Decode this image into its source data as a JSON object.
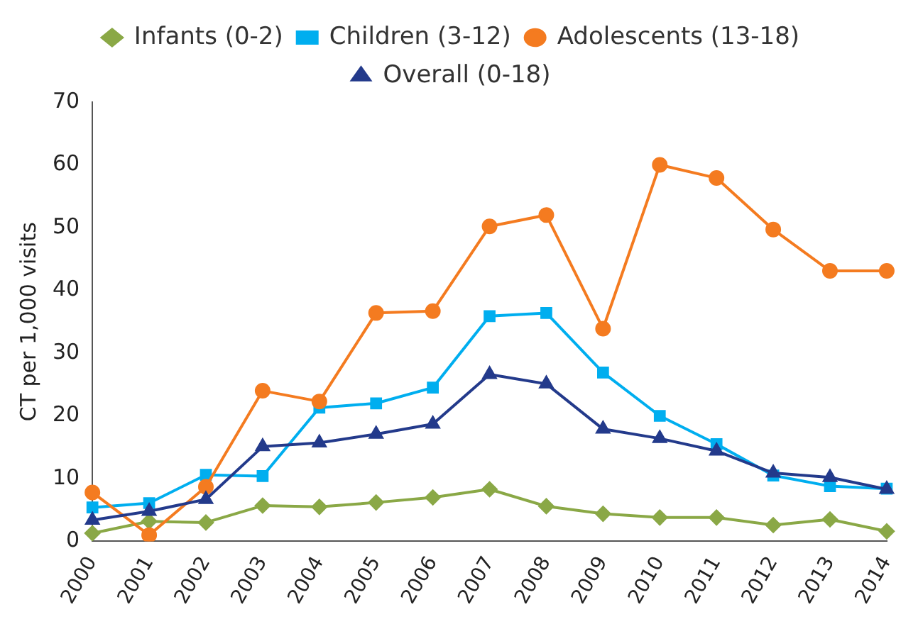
{
  "chart_data": {
    "type": "line",
    "ylabel": "CT per 1,000 visits",
    "categories": [
      "2000",
      "2001",
      "2002",
      "2003",
      "2004",
      "2005",
      "2006",
      "2007",
      "2008",
      "2009",
      "2010",
      "2011",
      "2012",
      "2013",
      "2014"
    ],
    "series": [
      {
        "name": "Infants (0-2)",
        "color": "#8aa846",
        "marker": "diamond",
        "values": [
          1.3,
          3.2,
          3.0,
          5.7,
          5.5,
          6.2,
          7.0,
          8.3,
          5.6,
          4.4,
          3.8,
          3.8,
          2.6,
          3.5,
          1.6
        ]
      },
      {
        "name": "Children (3-12)",
        "color": "#00aeef",
        "marker": "square",
        "values": [
          5.4,
          6.1,
          10.6,
          10.4,
          21.3,
          22.0,
          24.5,
          35.9,
          36.4,
          26.9,
          20.0,
          15.5,
          10.5,
          8.8,
          8.4
        ]
      },
      {
        "name": "Adolescents (13-18)",
        "color": "#f47b20",
        "marker": "circle",
        "values": [
          7.8,
          1.0,
          8.7,
          24.0,
          22.3,
          36.4,
          36.7,
          50.2,
          52.0,
          33.9,
          60.0,
          57.9,
          49.7,
          43.1,
          43.1
        ]
      },
      {
        "name": "Overall (0-18)",
        "color": "#233a8b",
        "marker": "triangle",
        "values": [
          3.4,
          4.8,
          6.7,
          15.1,
          15.7,
          17.1,
          18.7,
          26.6,
          25.1,
          17.9,
          16.4,
          14.4,
          10.9,
          10.2,
          8.3
        ]
      }
    ],
    "ylim": [
      0,
      70
    ],
    "yticks": [
      0,
      10,
      20,
      30,
      40,
      50,
      60,
      70
    ],
    "grid": false,
    "legend": "top",
    "line_style": "solid"
  }
}
